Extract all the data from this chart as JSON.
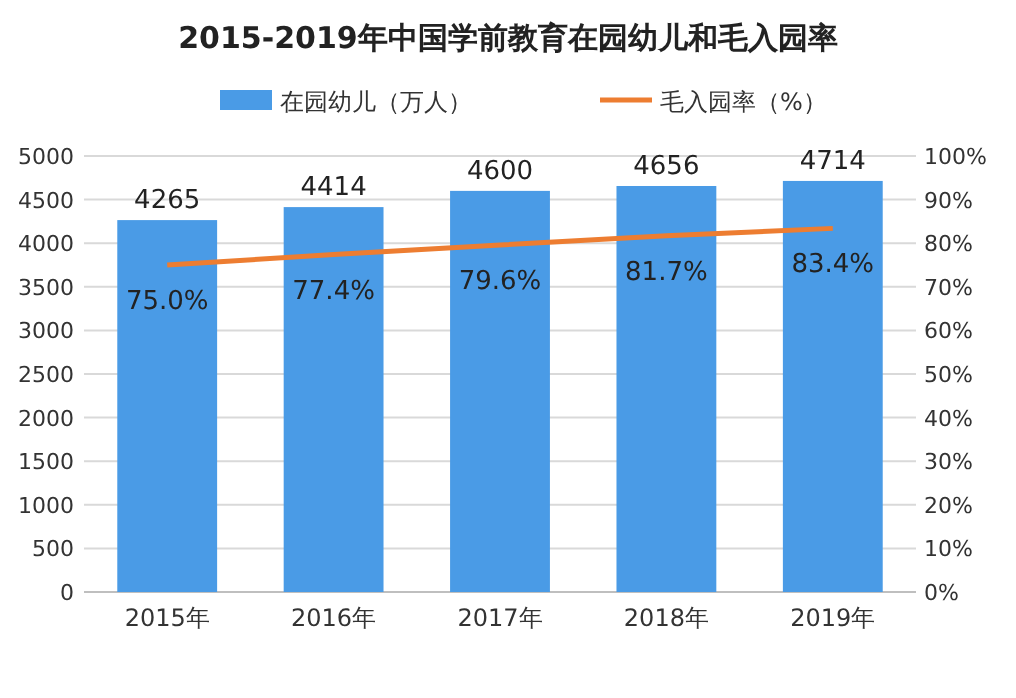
{
  "chart_data": {
    "type": "bar",
    "title": "2015-2019年中国学前教育在园幼儿和毛入园率",
    "categories": [
      "2015年",
      "2016年",
      "2017年",
      "2018年",
      "2019年"
    ],
    "series": [
      {
        "name": "在园幼儿（万人）",
        "color": "#4a9be6",
        "values": [
          4265,
          4414,
          4600,
          4656,
          4714
        ],
        "value_labels": [
          "4265",
          "4414",
          "4600",
          "4656",
          "4714"
        ]
      },
      {
        "name": "毛入园率（%）",
        "type": "line",
        "axis": "y2",
        "color": "#ed7d31",
        "values": [
          75.0,
          77.4,
          79.6,
          81.7,
          83.4
        ],
        "value_labels": [
          "75.0%",
          "77.4%",
          "79.6%",
          "81.7%",
          "83.4%"
        ]
      }
    ],
    "ylim": [
      0,
      5000
    ],
    "yticks": [
      0,
      500,
      1000,
      1500,
      2000,
      2500,
      3000,
      3500,
      4000,
      4500,
      5000
    ],
    "y2lim": [
      0,
      100
    ],
    "y2ticks": [
      {
        "value": 0,
        "label": "0%"
      },
      {
        "value": 10,
        "label": "10%"
      },
      {
        "value": 20,
        "label": "20%"
      },
      {
        "value": 30,
        "label": "30%"
      },
      {
        "value": 40,
        "label": "40%"
      },
      {
        "value": 50,
        "label": "50%"
      },
      {
        "value": 60,
        "label": "60%"
      },
      {
        "value": 70,
        "label": "70%"
      },
      {
        "value": 80,
        "label": "80%"
      },
      {
        "value": 90,
        "label": "90%"
      },
      {
        "value": 100,
        "label": "100%"
      }
    ],
    "grid": "y",
    "legend": "top",
    "marker": "none",
    "line_style": "solid"
  }
}
